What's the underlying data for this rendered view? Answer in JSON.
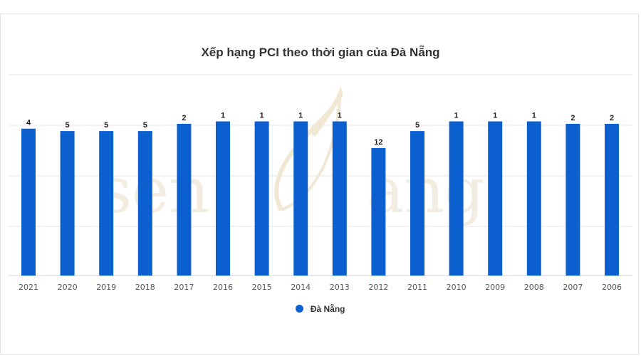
{
  "chart_data": {
    "type": "bar",
    "title": "Xếp hạng PCI theo thời gian của Đà Nẵng",
    "categories": [
      "2021",
      "2020",
      "2019",
      "2018",
      "2017",
      "2016",
      "2015",
      "2014",
      "2013",
      "2012",
      "2011",
      "2010",
      "2009",
      "2008",
      "2007",
      "2006"
    ],
    "series": [
      {
        "name": "Đà Nẵng",
        "values": [
          4,
          5,
          5,
          5,
          2,
          1,
          1,
          1,
          1,
          12,
          5,
          1,
          1,
          1,
          2,
          2
        ],
        "color": "#0c5fcf"
      }
    ],
    "axis": "reversed rank (1 = highest bar)",
    "grid": true,
    "legend_position": "bottom",
    "watermark": "senđàng"
  }
}
